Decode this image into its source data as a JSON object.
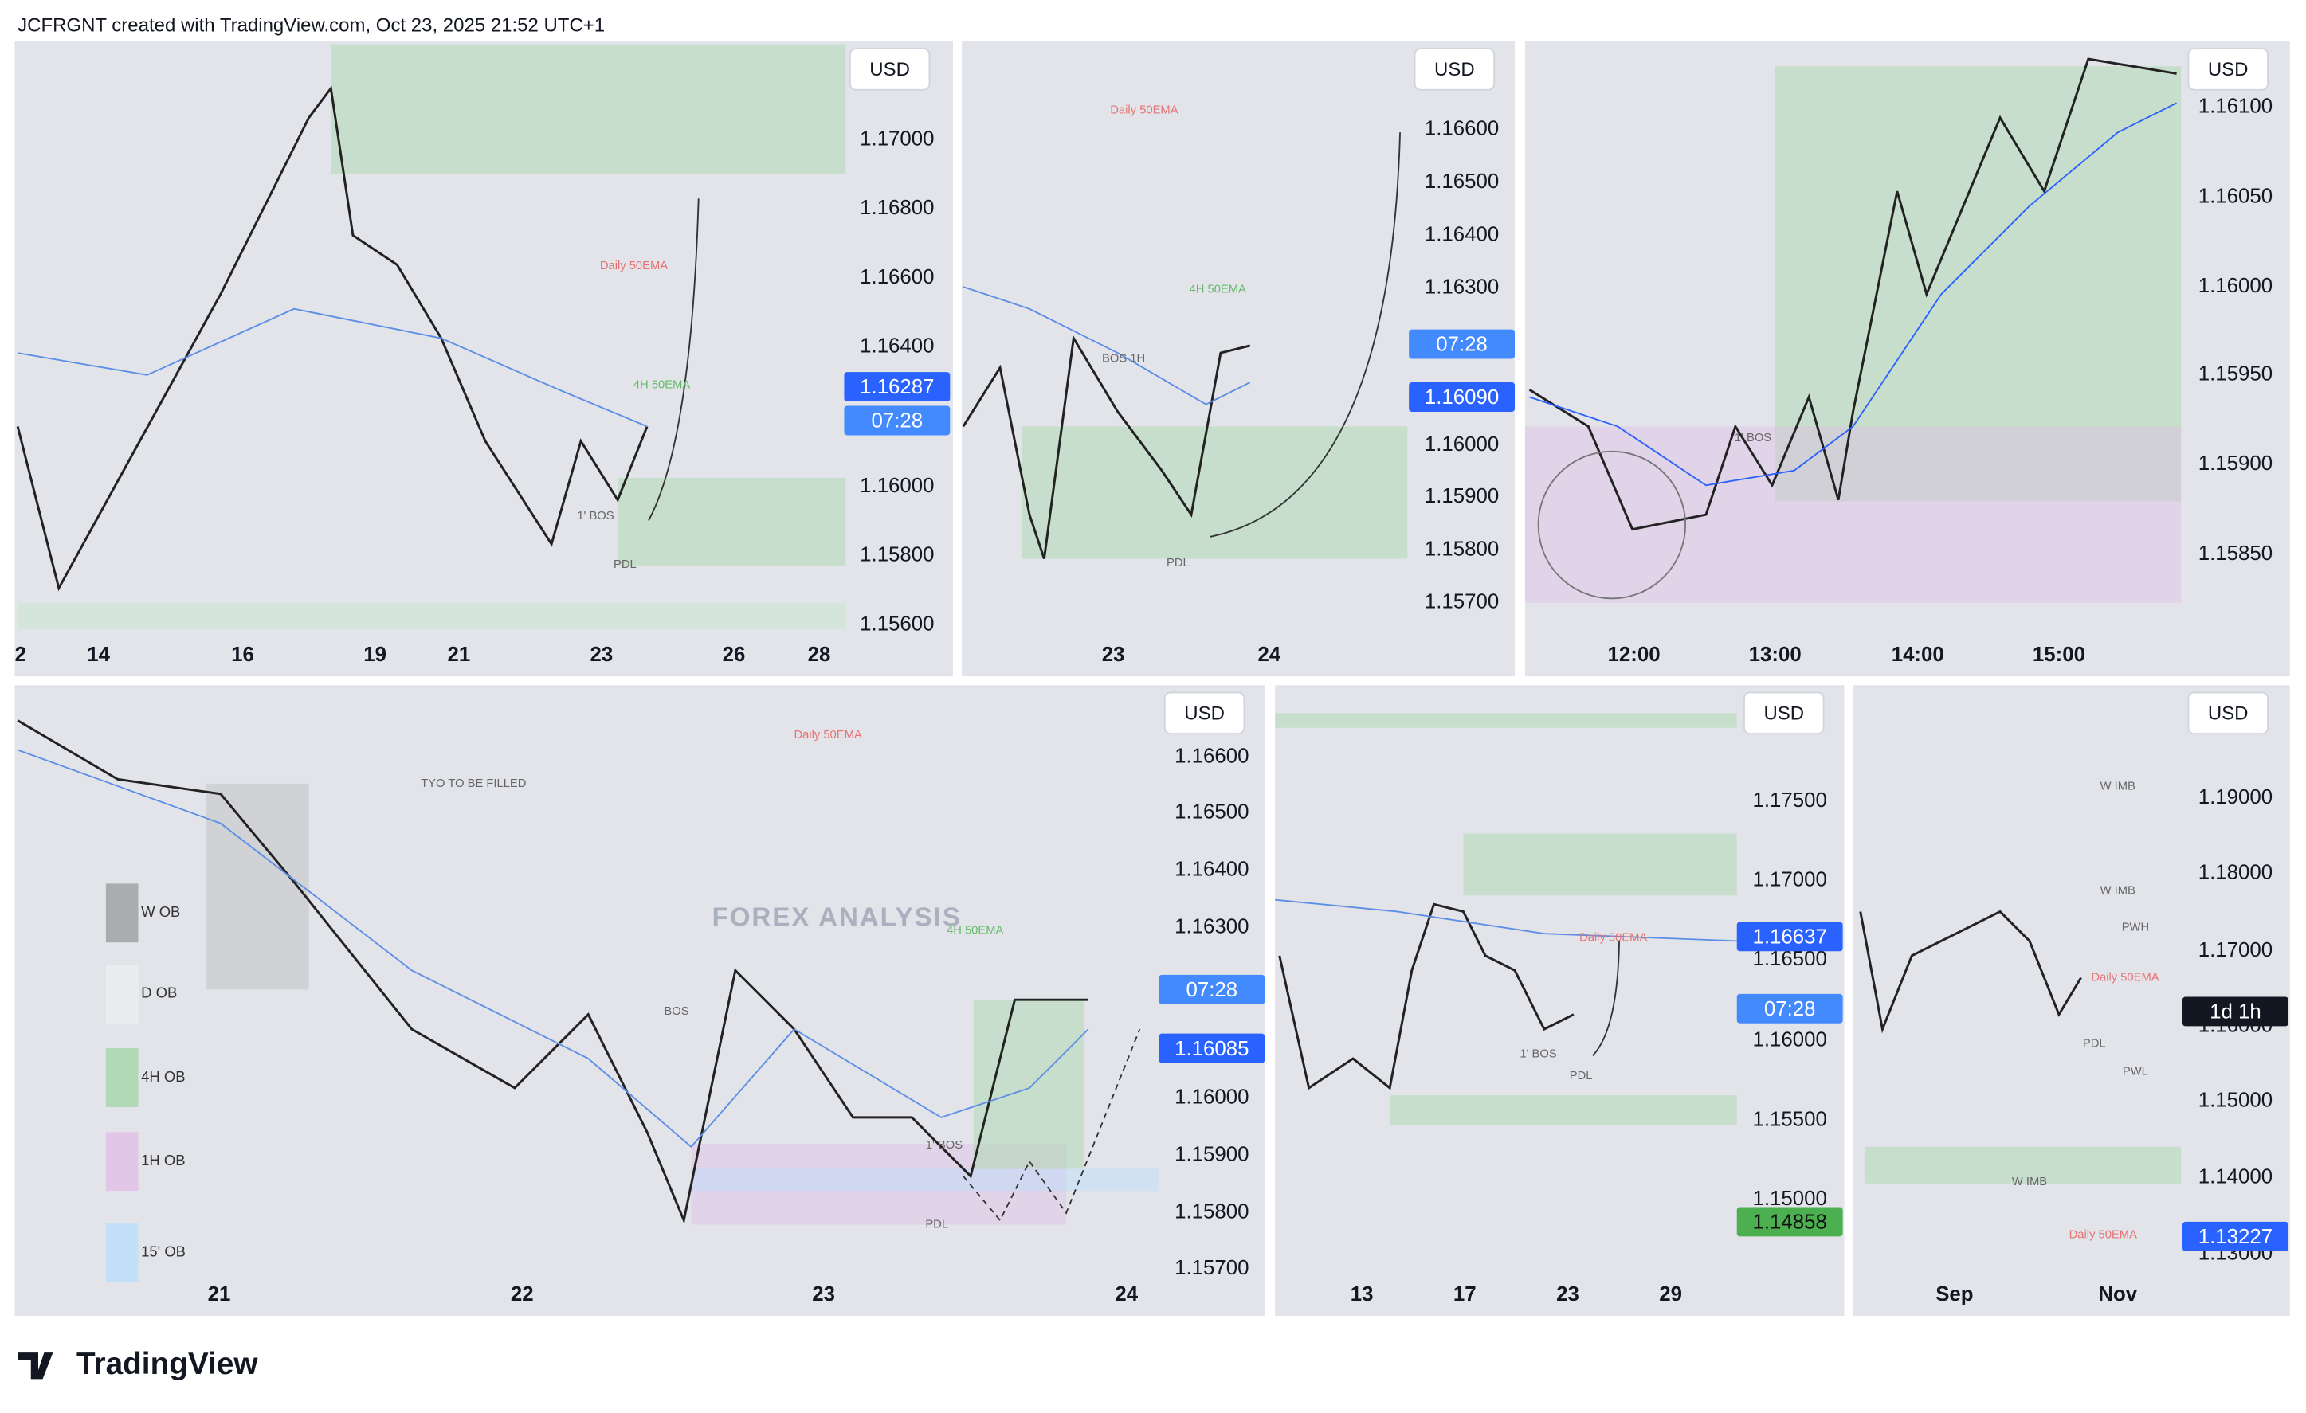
{
  "header": {
    "caption": "JCFRGNT created with TradingView.com, Oct 23, 2025 21:52 UTC+1"
  },
  "panels": [
    {
      "currency": "USD",
      "price_labels": [
        "1.17000",
        "1.16800",
        "1.16600",
        "1.16400",
        "1.16000",
        "1.15800",
        "1.15600"
      ],
      "badges": [
        "1.16287",
        "07:28"
      ],
      "time_labels": [
        "2",
        "14",
        "16",
        "19",
        "21",
        "23",
        "26",
        "28"
      ],
      "annotations": [
        "Daily 50EMA",
        "4H 50EMA",
        "1' BOS",
        "PDL"
      ]
    },
    {
      "currency": "USD",
      "price_labels": [
        "1.16600",
        "1.16500",
        "1.16400",
        "1.16300",
        "1.16000",
        "1.15900",
        "1.15800",
        "1.15700"
      ],
      "badges": [
        "07:28",
        "1.16090"
      ],
      "time_labels": [
        "23",
        "24"
      ],
      "annotations": [
        "Daily 50EMA",
        "4H 50EMA",
        "BOS 1H",
        "PDL"
      ]
    },
    {
      "currency": "USD",
      "price_labels": [
        "1.16100",
        "1.16050",
        "1.16000",
        "1.15950",
        "1.15900",
        "1.15850"
      ],
      "badges": [],
      "time_labels": [
        "12:00",
        "13:00",
        "14:00",
        "15:00"
      ],
      "annotations": [
        "1' BOS"
      ]
    },
    {
      "currency": "USD",
      "price_labels": [
        "1.16600",
        "1.16500",
        "1.16400",
        "1.16300",
        "1.16000",
        "1.15900",
        "1.15800",
        "1.15700"
      ],
      "badges": [
        "07:28",
        "1.16085"
      ],
      "time_labels": [
        "21",
        "22",
        "23",
        "24"
      ],
      "annotations": [
        "Daily 50EMA",
        "TYO TO BE  FILLED",
        "4H 50EMA",
        "BOS",
        "1' BOS",
        "PDL"
      ]
    },
    {
      "currency": "USD",
      "price_labels": [
        "1.17500",
        "1.17000",
        "1.16500",
        "1.16000",
        "1.15500",
        "1.15000"
      ],
      "badges": [
        "1.16637",
        "07:28",
        "1.14858"
      ],
      "time_labels": [
        "13",
        "17",
        "23",
        "29"
      ],
      "annotations": [
        "Daily 50EMA",
        "1' BOS",
        "PDL"
      ]
    },
    {
      "currency": "USD",
      "price_labels": [
        "1.19000",
        "1.18000",
        "1.17000",
        "1.16000",
        "1.15000",
        "1.14000",
        "1.13000"
      ],
      "badges": [
        "1d 1h",
        "1.13227"
      ],
      "time_labels": [
        "Sep",
        "Nov"
      ],
      "annotations": [
        "W IMB",
        "W IMB",
        "PWH",
        "Daily 50EMA",
        "PDL",
        "PWL",
        "W IMB",
        "Daily 50EMA"
      ]
    }
  ],
  "legend": [
    "W OB",
    "D OB",
    "4H OB",
    "1H OB",
    "15' OB"
  ],
  "watermark": {
    "title": "FOREX ANALYSIS"
  },
  "footer": {
    "brand": "TradingView"
  }
}
